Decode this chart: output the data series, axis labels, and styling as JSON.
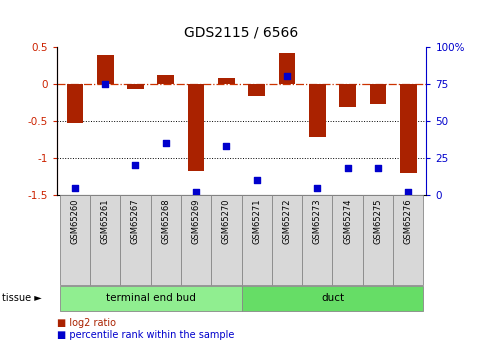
{
  "title": "GDS2115 / 6566",
  "samples": [
    "GSM65260",
    "GSM65261",
    "GSM65267",
    "GSM65268",
    "GSM65269",
    "GSM65270",
    "GSM65271",
    "GSM65272",
    "GSM65273",
    "GSM65274",
    "GSM65275",
    "GSM65276"
  ],
  "log2_ratio": [
    -0.53,
    0.38,
    -0.07,
    0.12,
    -1.18,
    0.07,
    -0.17,
    0.42,
    -0.72,
    -0.32,
    -0.27,
    -1.2
  ],
  "percentile": [
    5,
    75,
    20,
    35,
    2,
    33,
    10,
    80,
    5,
    18,
    18,
    2
  ],
  "groups": [
    {
      "label": "terminal end bud",
      "start": 0,
      "end": 5,
      "color": "#90ee90"
    },
    {
      "label": "duct",
      "start": 6,
      "end": 11,
      "color": "#66dd66"
    }
  ],
  "bar_color": "#aa2200",
  "dot_color": "#0000cc",
  "ylim_left": [
    -1.5,
    0.5
  ],
  "ylim_right": [
    0,
    100
  ],
  "dotted_lines": [
    -0.5,
    -1.0
  ],
  "yticks_left": [
    0.5,
    0,
    -0.5,
    -1.0,
    -1.5
  ],
  "ytick_labels_left": [
    "0.5",
    "0",
    "-0.5",
    "-1",
    "-1.5"
  ],
  "yticks_right": [
    100,
    75,
    50,
    25,
    0
  ],
  "ytick_labels_right": [
    "100%",
    "75",
    "50",
    "25",
    "0"
  ],
  "legend": [
    {
      "label": "log2 ratio",
      "color": "#aa2200"
    },
    {
      "label": "percentile rank within the sample",
      "color": "#0000cc"
    }
  ]
}
